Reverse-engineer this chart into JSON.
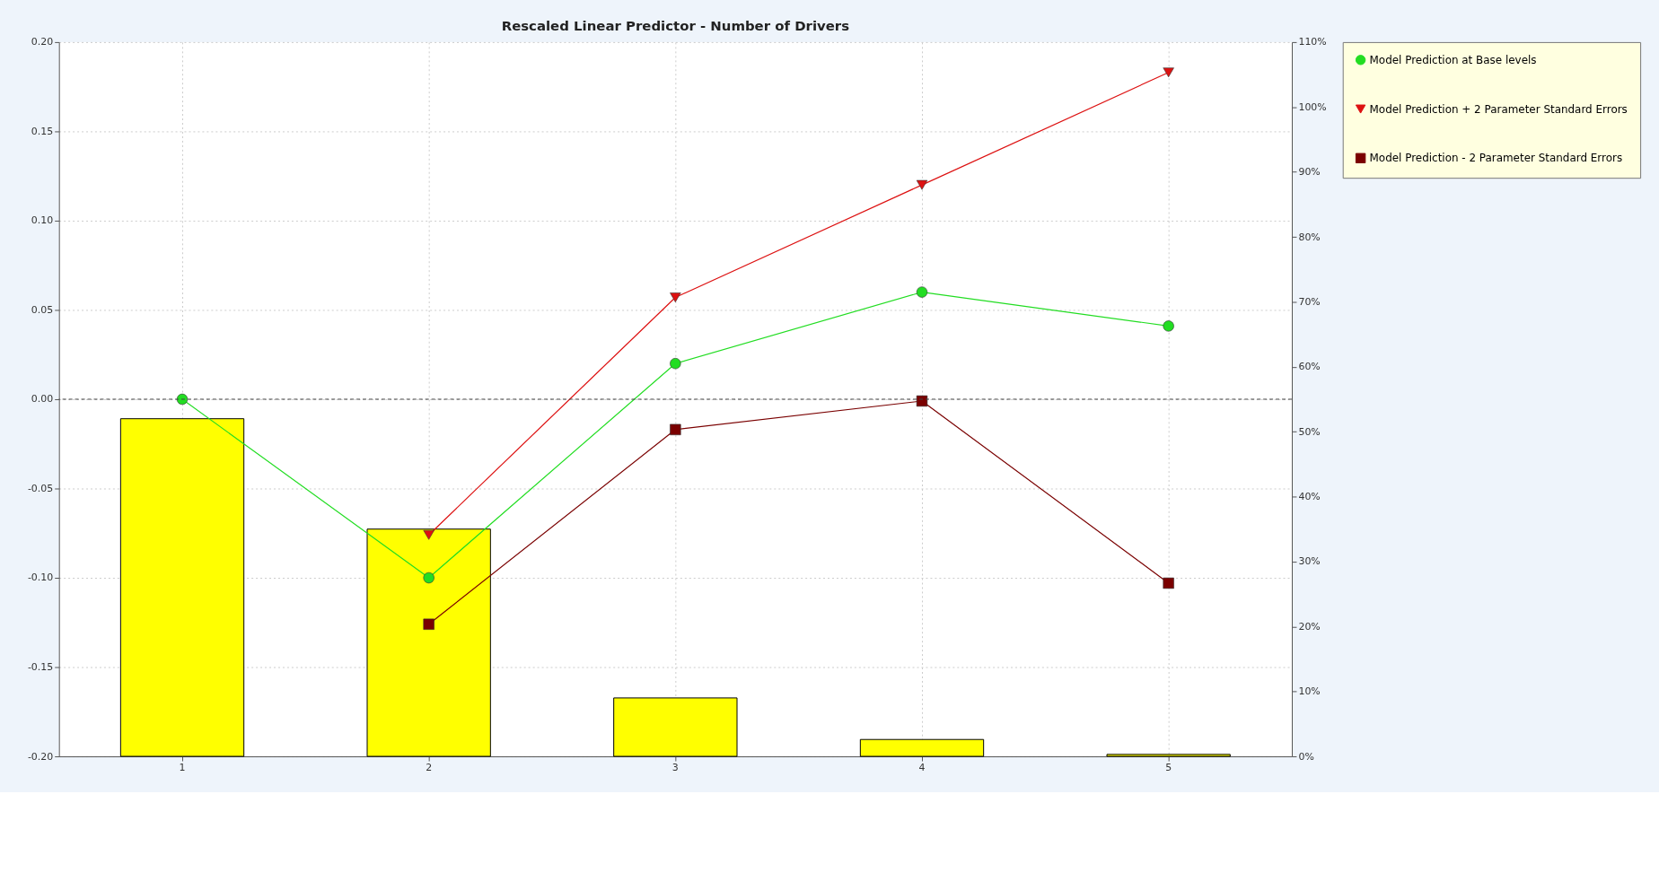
{
  "chart_data": {
    "type": "line",
    "title": "Rescaled Linear Predictor - Number of Drivers",
    "categories": [
      "1",
      "2",
      "3",
      "4",
      "5"
    ],
    "series": [
      {
        "type": "bar",
        "axis": "y2",
        "color": "#ffff00",
        "values": [
          52,
          35,
          9,
          2.6,
          0.3
        ]
      },
      {
        "name": "Model Prediction at Base levels",
        "color": "#22dd22",
        "marker": "circle",
        "values": [
          0,
          -0.1,
          0.02,
          0.06,
          0.041
        ]
      },
      {
        "name": "Model Prediction + 2 Parameter Standard Errors",
        "color": "#dd1111",
        "marker": "triangle",
        "values": [
          null,
          -0.076,
          0.057,
          0.12,
          0.183
        ]
      },
      {
        "name": "Model Prediction - 2 Parameter Standard Errors",
        "color": "#7a0000",
        "marker": "square",
        "values": [
          null,
          -0.126,
          -0.017,
          -0.001,
          -0.103
        ]
      }
    ],
    "ylim": [
      -0.2,
      0.2
    ],
    "yticks": [
      {
        "value": -0.2,
        "label": "-0.20"
      },
      {
        "value": -0.15,
        "label": "-0.15"
      },
      {
        "value": -0.1,
        "label": "-0.10"
      },
      {
        "value": -0.05,
        "label": "-0.05"
      },
      {
        "value": 0,
        "label": "0.00"
      },
      {
        "value": 0.05,
        "label": "0.05"
      },
      {
        "value": 0.1,
        "label": "0.10"
      },
      {
        "value": 0.15,
        "label": "0.15"
      },
      {
        "value": 0.2,
        "label": "0.20"
      }
    ],
    "y2lim": [
      0,
      110
    ],
    "y2ticks": [
      {
        "value": 0,
        "label": "0%"
      },
      {
        "value": 10,
        "label": "10%"
      },
      {
        "value": 20,
        "label": "20%"
      },
      {
        "value": 30,
        "label": "30%"
      },
      {
        "value": 40,
        "label": "40%"
      },
      {
        "value": 50,
        "label": "50%"
      },
      {
        "value": 60,
        "label": "60%"
      },
      {
        "value": 70,
        "label": "70%"
      },
      {
        "value": 80,
        "label": "80%"
      },
      {
        "value": 90,
        "label": "90%"
      },
      {
        "value": 100,
        "label": "100%"
      },
      {
        "value": 110,
        "label": "110%"
      }
    ],
    "ref_lines": [
      {
        "axis": "y",
        "value": 0,
        "line_style": "dashed",
        "color": "#444444"
      }
    ],
    "grid": true,
    "legend": "right"
  }
}
